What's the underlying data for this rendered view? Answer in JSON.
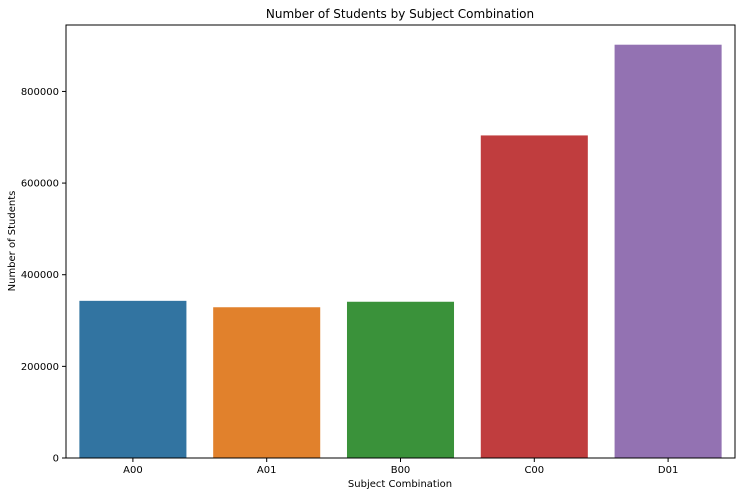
{
  "chart_data": {
    "type": "bar",
    "title": "Number of Students by Subject Combination",
    "xlabel": "Subject Combination",
    "ylabel": "Number of Students",
    "categories": [
      "A00",
      "A01",
      "B00",
      "C00",
      "D01"
    ],
    "values": [
      343000,
      329000,
      341000,
      704000,
      902000
    ],
    "colors": [
      "#3274a1",
      "#e1812c",
      "#3a923a",
      "#c03d3e",
      "#9372b2"
    ],
    "ylim": [
      0,
      945000
    ],
    "yticks": [
      0,
      200000,
      400000,
      600000,
      800000
    ],
    "ytick_labels": [
      "0",
      "200000",
      "400000",
      "600000",
      "800000"
    ],
    "grid": false,
    "legend": "none"
  }
}
